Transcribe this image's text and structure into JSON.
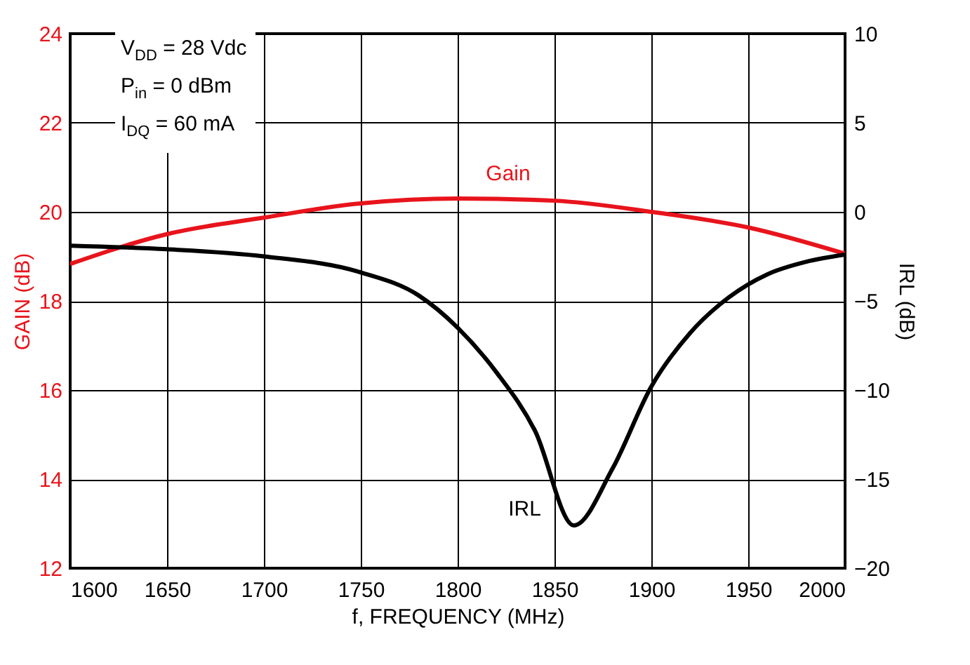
{
  "chart_data": {
    "type": "line",
    "xlabel": "f, FREQUENCY (MHz)",
    "ylabel": "GAIN (dB)",
    "y2label": "IRL (dB)",
    "annotations": [
      "V$_{DD}$ = 28 Vdc",
      "P$_{in}$ = 0 dBm",
      "I$_{DQ}$ = 60 mA"
    ],
    "xlim": [
      1600,
      2000
    ],
    "xticks": [
      1600,
      1650,
      1700,
      1750,
      1800,
      1850,
      1900,
      1950,
      2000
    ],
    "ylim": [
      12,
      24
    ],
    "yticks": [
      12,
      14,
      16,
      18,
      20,
      22,
      24
    ],
    "y2lim": [
      -20,
      10
    ],
    "y2ticks": [
      -20,
      -15,
      -10,
      -5,
      0,
      5,
      10
    ],
    "grid": true,
    "series": [
      {
        "name": "Gain",
        "color": "#e8141c",
        "x": [
          1600,
          1650,
          1700,
          1750,
          1800,
          1850,
          1900,
          1950,
          2000
        ],
        "values": [
          18.83,
          19.5,
          19.87,
          20.19,
          20.3,
          20.25,
          20.0,
          19.65,
          19.06
        ]
      },
      {
        "name": "IRL",
        "color": "#000000",
        "axis": "y2",
        "x": [
          1600,
          1650,
          1700,
          1750,
          1780,
          1800,
          1820,
          1840,
          1860,
          1880,
          1900,
          1920,
          1940,
          1960,
          1980,
          2000
        ],
        "values": [
          -1.9,
          -2.1,
          -2.5,
          -3.4,
          -4.7,
          -6.5,
          -9.0,
          -12.3,
          -17.6,
          -14.4,
          -9.8,
          -6.8,
          -4.8,
          -3.5,
          -2.8,
          -2.4
        ]
      }
    ]
  }
}
